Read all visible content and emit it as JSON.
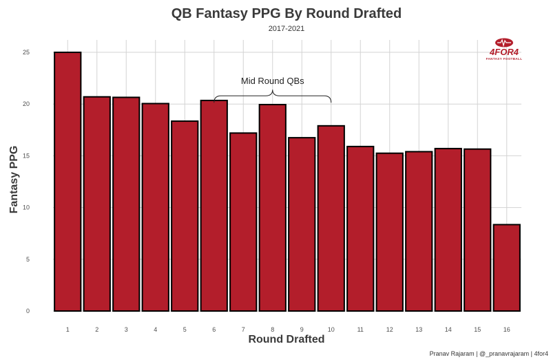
{
  "chart_data": {
    "type": "bar",
    "title": "QB Fantasy PPG By Round Drafted",
    "subtitle": "2017-2021",
    "xlabel": "Round Drafted",
    "ylabel": "Fantasy PPG",
    "categories": [
      "1",
      "2",
      "3",
      "4",
      "5",
      "6",
      "7",
      "8",
      "9",
      "10",
      "11",
      "12",
      "13",
      "14",
      "15",
      "16"
    ],
    "values": [
      25.0,
      20.7,
      20.65,
      20.05,
      18.35,
      20.35,
      17.2,
      19.95,
      16.75,
      17.9,
      15.9,
      15.25,
      15.4,
      15.7,
      15.65,
      8.35
    ],
    "ylim": [
      0,
      26.2
    ],
    "yticks": [
      "0",
      "5",
      "10",
      "15",
      "20",
      "25"
    ],
    "grid": true,
    "bar_color": "#b31e2b",
    "bar_outline": "#000000",
    "annotation": {
      "text": "Mid Round QBs",
      "from_category": "6",
      "to_category": "10",
      "at_value": 20.8
    },
    "caption": "Pranav Rajaram | @_pranavrajaram | 4for4"
  },
  "logo": {
    "name": "4FOR4",
    "tagline": "FANTASY FOOTBALL",
    "color": "#b31e2b"
  }
}
